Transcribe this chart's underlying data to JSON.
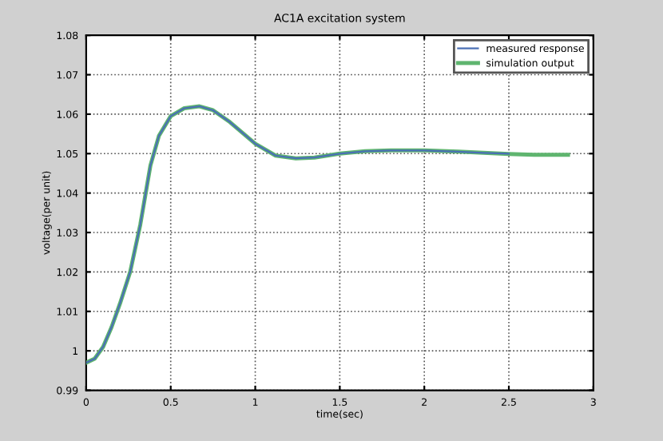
{
  "chart_data": {
    "type": "line",
    "title": "AC1A excitation system",
    "xlabel": "time(sec)",
    "ylabel": "voltage(per unit)",
    "xlim": [
      0,
      3
    ],
    "ylim": [
      0.99,
      1.08
    ],
    "xticks": [
      0,
      0.5,
      1,
      1.5,
      2,
      2.5,
      3
    ],
    "yticks": [
      0.99,
      1,
      1.01,
      1.02,
      1.03,
      1.04,
      1.05,
      1.06,
      1.07,
      1.08
    ],
    "grid": true,
    "legend": "top right",
    "line_style": "solid",
    "marker": "none",
    "series": [
      {
        "name": "measured response",
        "color": "#4a6fb5",
        "x": [
          0,
          0.05,
          0.1,
          0.15,
          0.2,
          0.26,
          0.32,
          0.38,
          0.43,
          0.5,
          0.58,
          0.67,
          0.75,
          0.85,
          1.0,
          1.12,
          1.24,
          1.35,
          1.5,
          1.65,
          1.8,
          2.0,
          2.2,
          2.35,
          2.5
        ],
        "values": [
          0.997,
          0.998,
          1.001,
          1.006,
          1.012,
          1.02,
          1.032,
          1.047,
          1.0545,
          1.0595,
          1.0615,
          1.062,
          1.061,
          1.058,
          1.0525,
          1.0495,
          1.0488,
          1.049,
          1.05,
          1.0506,
          1.0508,
          1.0508,
          1.0505,
          1.0502,
          1.05
        ]
      },
      {
        "name": "simulation output",
        "color": "#5fb56f",
        "x": [
          0,
          0.05,
          0.1,
          0.15,
          0.2,
          0.26,
          0.32,
          0.38,
          0.43,
          0.5,
          0.58,
          0.67,
          0.75,
          0.85,
          1.0,
          1.12,
          1.24,
          1.35,
          1.5,
          1.65,
          1.8,
          2.0,
          2.2,
          2.35,
          2.5,
          2.65,
          2.85
        ],
        "values": [
          0.997,
          0.998,
          1.001,
          1.006,
          1.012,
          1.02,
          1.032,
          1.047,
          1.0545,
          1.0595,
          1.0615,
          1.062,
          1.061,
          1.058,
          1.0525,
          1.0495,
          1.0488,
          1.049,
          1.05,
          1.0506,
          1.0508,
          1.0508,
          1.0505,
          1.0502,
          1.0499,
          1.0497,
          1.0497
        ]
      }
    ]
  }
}
